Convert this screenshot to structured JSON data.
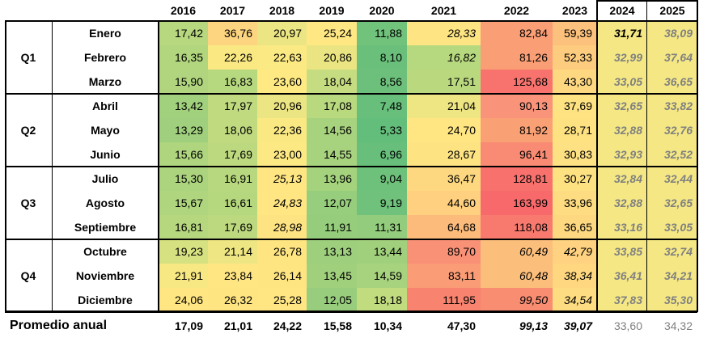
{
  "years": [
    "2016",
    "2017",
    "2018",
    "2019",
    "2020",
    "2021",
    "2022",
    "2023",
    "2024",
    "2025"
  ],
  "quarters": [
    {
      "label": "Q1",
      "months": [
        0,
        1,
        2
      ]
    },
    {
      "label": "Q2",
      "months": [
        3,
        4,
        5
      ]
    },
    {
      "label": "Q3",
      "months": [
        6,
        7,
        8
      ]
    },
    {
      "label": "Q4",
      "months": [
        9,
        10,
        11
      ]
    }
  ],
  "rows": [
    {
      "month": "Enero",
      "values": [
        "17,42",
        "36,76",
        "20,97",
        "25,24",
        "11,88",
        "28,33",
        "82,84",
        "59,39",
        "31,71",
        "38,09"
      ],
      "style": [
        "",
        "",
        "",
        "",
        "",
        "it",
        "",
        "",
        "bd-it",
        "grey-it"
      ],
      "colors": [
        "#b7d87e",
        "#fdd47f",
        "#ece583",
        "#ffe883",
        "#71c27b",
        "#fee482",
        "#fa9e75",
        "#fcc17c",
        "#f5e884",
        "#f5e884"
      ]
    },
    {
      "month": "Febrero",
      "values": [
        "16,35",
        "22,26",
        "22,63",
        "20,86",
        "8,10",
        "16,82",
        "81,26",
        "52,33",
        "32,99",
        "37,64"
      ],
      "style": [
        "",
        "",
        "",
        "",
        "",
        "it",
        "",
        "",
        "grey-it",
        "grey-it"
      ],
      "colors": [
        "#b2d67e",
        "#fae983",
        "#fbe983",
        "#eae582",
        "#6ac07b",
        "#b6d87e",
        "#fa9f75",
        "#fdcc7e",
        "#f5e884",
        "#f5e884"
      ]
    },
    {
      "month": "Marzo",
      "values": [
        "15,90",
        "16,83",
        "23,60",
        "18,04",
        "8,56",
        "17,51",
        "125,68",
        "43,30",
        "33,05",
        "36,65"
      ],
      "style": [
        "",
        "",
        "",
        "",
        "",
        "",
        "",
        "",
        "grey-it",
        "grey-it"
      ],
      "colors": [
        "#b0d57e",
        "#b6d87e",
        "#fee983",
        "#c6dc80",
        "#6cc07b",
        "#bad97f",
        "#f8736d",
        "#fed880",
        "#f5e884",
        "#f5e884"
      ]
    },
    {
      "month": "Abril",
      "values": [
        "13,42",
        "17,97",
        "20,96",
        "17,08",
        "7,48",
        "21,04",
        "90,13",
        "37,69",
        "32,65",
        "33,82"
      ],
      "style": [
        "",
        "",
        "",
        "",
        "",
        "",
        "",
        "",
        "grey-it",
        "grey-it"
      ],
      "colors": [
        "#a1d17d",
        "#c0da7f",
        "#ece583",
        "#b9d97f",
        "#68bf7b",
        "#eee683",
        "#f9937a",
        "#ffe282",
        "#f5e884",
        "#f5e884"
      ]
    },
    {
      "month": "Mayo",
      "values": [
        "13,29",
        "18,06",
        "22,36",
        "14,56",
        "5,33",
        "24,70",
        "81,92",
        "28,71",
        "32,88",
        "32,76"
      ],
      "style": [
        "",
        "",
        "",
        "",
        "",
        "",
        "",
        "",
        "grey-it",
        "grey-it"
      ],
      "colors": [
        "#a0d07d",
        "#c0da7f",
        "#fae983",
        "#a8d37e",
        "#63be7b",
        "#ffe683",
        "#faa075",
        "#fee282",
        "#f5e884",
        "#f5e884"
      ]
    },
    {
      "month": "Junio",
      "values": [
        "15,66",
        "17,69",
        "23,00",
        "14,55",
        "6,96",
        "28,67",
        "96,41",
        "30,83",
        "32,93",
        "32,52"
      ],
      "style": [
        "",
        "",
        "",
        "",
        "",
        "",
        "",
        "",
        "grey-it",
        "grey-it"
      ],
      "colors": [
        "#afd57e",
        "#bdd97f",
        "#fde983",
        "#a8d37e",
        "#67bf7b",
        "#fee382",
        "#f98a73",
        "#fee182",
        "#f5e884",
        "#f5e884"
      ]
    },
    {
      "month": "Julio",
      "values": [
        "15,30",
        "16,91",
        "25,13",
        "13,96",
        "9,04",
        "36,47",
        "128,81",
        "30,27",
        "32,84",
        "32,44"
      ],
      "style": [
        "",
        "",
        "it",
        "",
        "",
        "",
        "",
        "",
        "grey-it",
        "grey-it"
      ],
      "colors": [
        "#acd47e",
        "#b7d87e",
        "#ffe683",
        "#a4d27d",
        "#6ec17b",
        "#fed880",
        "#f8716d",
        "#fee282",
        "#f5e884",
        "#f5e884"
      ]
    },
    {
      "month": "Agosto",
      "values": [
        "15,67",
        "16,61",
        "24,83",
        "12,07",
        "9,19",
        "44,60",
        "163,99",
        "33,96",
        "32,88",
        "32,65"
      ],
      "style": [
        "",
        "",
        "it",
        "",
        "",
        "",
        "",
        "",
        "grey-it",
        "grey-it"
      ],
      "colors": [
        "#afd57e",
        "#b5d77e",
        "#ffe683",
        "#97ce7d",
        "#6fc17b",
        "#fed07f",
        "#f8696b",
        "#fedc81",
        "#f5e884",
        "#f5e884"
      ]
    },
    {
      "month": "Septiembre",
      "values": [
        "16,81",
        "17,69",
        "28,98",
        "11,91",
        "11,31",
        "64,68",
        "118,08",
        "36,65",
        "33,16",
        "33,05"
      ],
      "style": [
        "",
        "",
        "it",
        "",
        "",
        "",
        "",
        "",
        "grey-it",
        "grey-it"
      ],
      "colors": [
        "#b6d77e",
        "#bdd97f",
        "#fee382",
        "#96cd7c",
        "#92cc7c",
        "#fcba7b",
        "#f87a6f",
        "#fed880",
        "#f5e884",
        "#f5e884"
      ]
    },
    {
      "month": "Octubre",
      "values": [
        "19,23",
        "21,14",
        "26,78",
        "13,13",
        "13,44",
        "89,70",
        "60,49",
        "42,79",
        "33,85",
        "32,74"
      ],
      "style": [
        "",
        "",
        "",
        "",
        "",
        "",
        "it",
        "it",
        "grey-it",
        "grey-it"
      ],
      "colors": [
        "#d6e181",
        "#eee683",
        "#ffe582",
        "#9ecf7d",
        "#a1d07d",
        "#f99177",
        "#fcbe7b",
        "#fed280",
        "#f5e884",
        "#f5e884"
      ]
    },
    {
      "month": "Noviembre",
      "values": [
        "21,91",
        "23,84",
        "26,14",
        "13,45",
        "14,59",
        "83,11",
        "60,48",
        "38,34",
        "36,41",
        "34,21"
      ],
      "style": [
        "",
        "",
        "",
        "",
        "",
        "",
        "it",
        "it",
        "grey-it",
        "grey-it"
      ],
      "colors": [
        "#f7e883",
        "#ffe683",
        "#ffe582",
        "#a1d07d",
        "#a8d37e",
        "#fa9c75",
        "#fcbe7b",
        "#fed780",
        "#f5e884",
        "#f5e884"
      ]
    },
    {
      "month": "Diciembre",
      "values": [
        "24,06",
        "26,32",
        "25,28",
        "12,05",
        "18,18",
        "111,95",
        "99,50",
        "34,54",
        "37,83",
        "35,30"
      ],
      "style": [
        "",
        "",
        "",
        "",
        "",
        "",
        "it",
        "it",
        "grey-it",
        "grey-it"
      ],
      "colors": [
        "#ffe683",
        "#ffe582",
        "#ffe683",
        "#97cd7c",
        "#c1db7f",
        "#f8836f",
        "#f98d72",
        "#fedc81",
        "#f5e884",
        "#f5e884"
      ]
    }
  ],
  "average": {
    "label": "Promedio anual",
    "values": [
      "17,09",
      "21,01",
      "24,22",
      "15,58",
      "10,34",
      "47,30",
      "99,13",
      "39,07",
      "33,60",
      "34,32"
    ],
    "style": [
      "",
      "",
      "",
      "",
      "",
      "",
      "it",
      "it",
      "grey",
      "grey"
    ]
  }
}
